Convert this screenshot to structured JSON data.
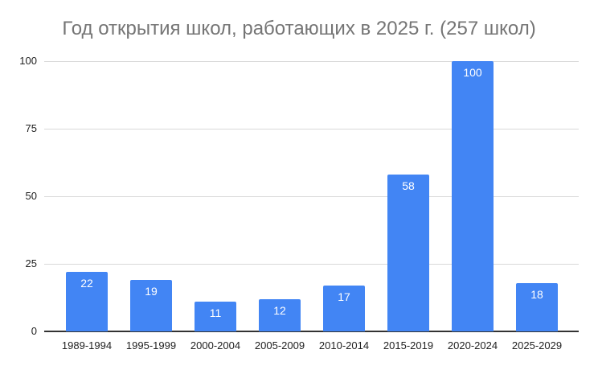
{
  "chart_data": {
    "type": "bar",
    "title": "Год открытия школ, работающих в 2025 г. (257 школ)",
    "xlabel": "",
    "ylabel": "",
    "categories": [
      "1989-1994",
      "1995-1999",
      "2000-2004",
      "2005-2009",
      "2010-2014",
      "2015-2019",
      "2020-2024",
      "2025-2029"
    ],
    "values": [
      22,
      19,
      11,
      12,
      17,
      58,
      100,
      18
    ],
    "ylim": [
      0,
      100
    ],
    "yticks": [
      0,
      25,
      50,
      75,
      100
    ],
    "grid": true,
    "legend": "none",
    "data_labels": true,
    "bar_color": "#4285f4"
  }
}
